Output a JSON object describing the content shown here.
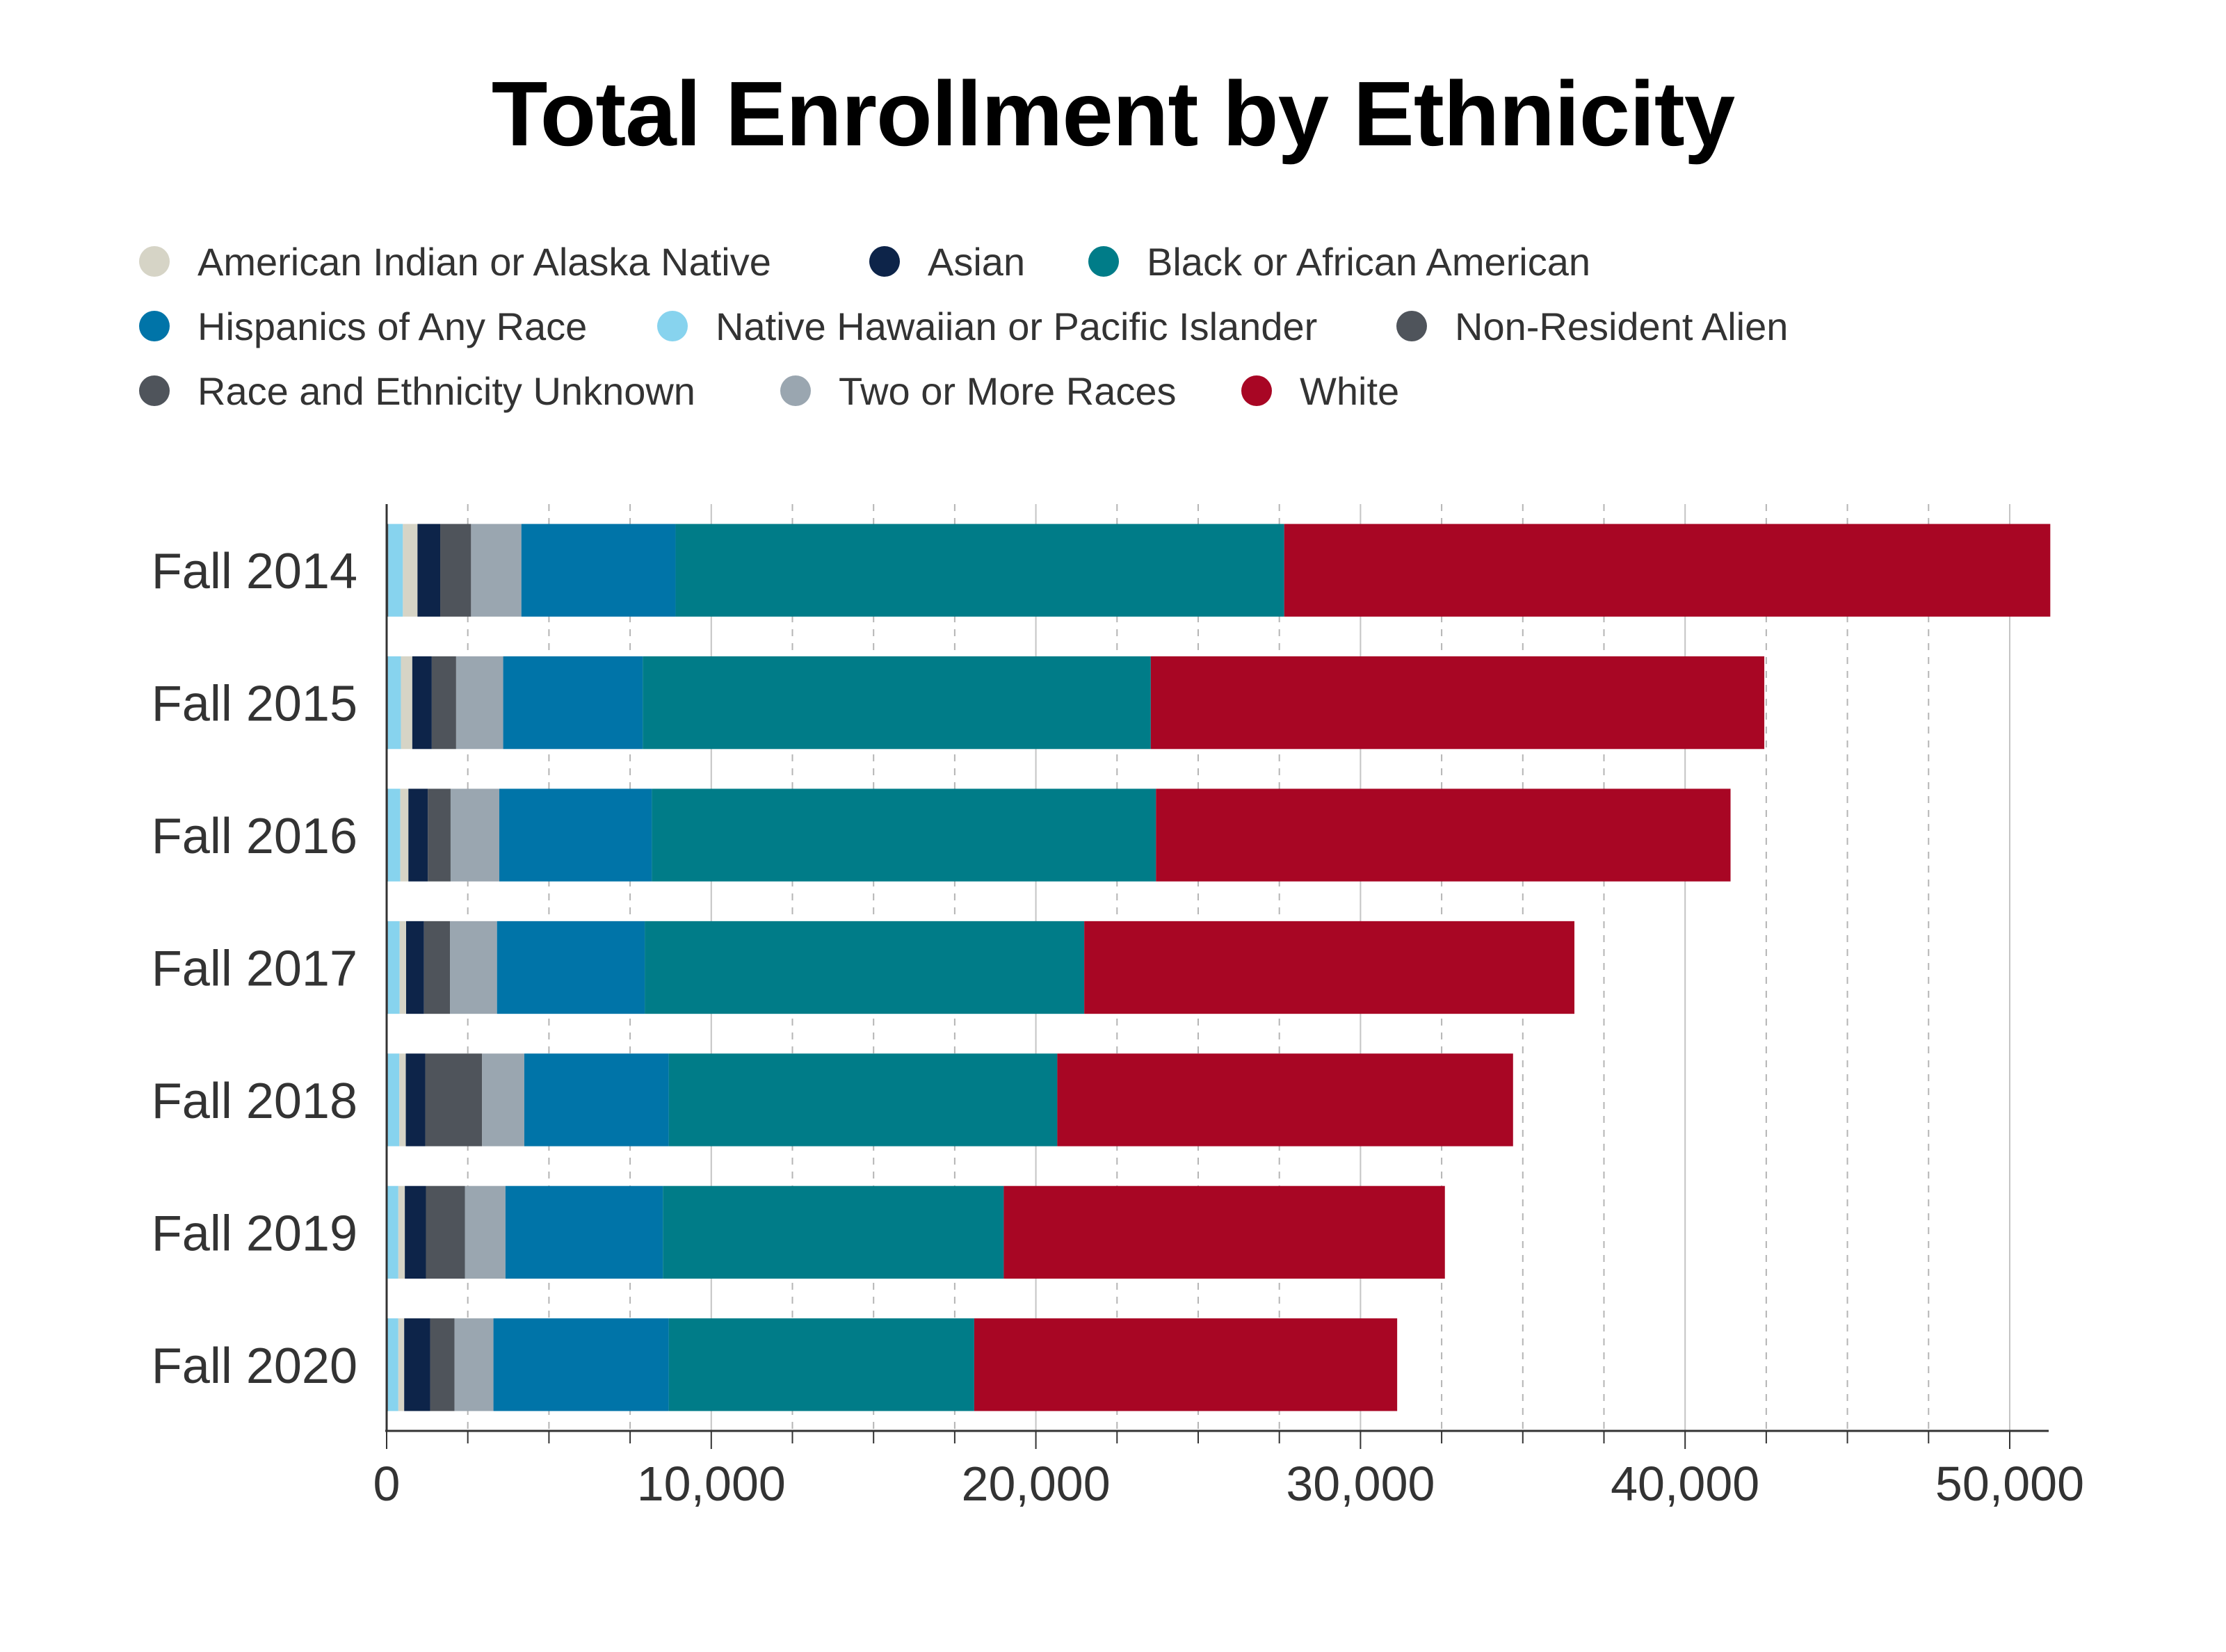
{
  "chart_data": {
    "type": "bar",
    "orientation": "horizontal",
    "stacked": true,
    "title": "Total Enrollment by Ethnicity",
    "xlabel": "",
    "ylabel": "",
    "xlim": [
      0,
      51200
    ],
    "x_ticks": [
      0,
      10000,
      20000,
      30000,
      40000,
      50000
    ],
    "x_tick_labels": [
      "0",
      "10,000",
      "20,000",
      "30,000",
      "40,000",
      "50,000"
    ],
    "grid": "vertical",
    "legend_position": "top",
    "categories": [
      "Fall 2014",
      "Fall 2015",
      "Fall 2016",
      "Fall 2017",
      "Fall 2018",
      "Fall 2019",
      "Fall 2020"
    ],
    "series": [
      {
        "name": "Non-Resident Alien",
        "color": "#4f545b",
        "values": [
          50,
          40,
          40,
          40,
          40,
          30,
          40
        ]
      },
      {
        "name": "Native Hawaiian or Pacific Islander",
        "color": "#87d3ee",
        "values": [
          450,
          400,
          380,
          360,
          350,
          330,
          320
        ]
      },
      {
        "name": "American Indian or Alaska Native",
        "color": "#d6d4c6",
        "values": [
          450,
          350,
          250,
          200,
          200,
          200,
          180
        ]
      },
      {
        "name": "Asian",
        "color": "#0d2449",
        "values": [
          700,
          600,
          600,
          550,
          600,
          650,
          800
        ]
      },
      {
        "name": "Race and Ethnicity Unknown",
        "color": "#4f545b",
        "values": [
          950,
          750,
          700,
          800,
          1750,
          1200,
          750
        ]
      },
      {
        "name": "Two or More Races",
        "color": "#9aa6b0",
        "values": [
          1550,
          1450,
          1500,
          1450,
          1300,
          1250,
          1200
        ]
      },
      {
        "name": "Hispanics of Any Race",
        "color": "#0074a8",
        "values": [
          4750,
          4300,
          4700,
          4550,
          4450,
          4850,
          5400
        ]
      },
      {
        "name": "Black or African American",
        "color": "#007c88",
        "values": [
          18750,
          15650,
          15530,
          13540,
          11970,
          10500,
          9410
        ]
      },
      {
        "name": "White",
        "color": "#a80624",
        "values": [
          23600,
          18900,
          17700,
          15100,
          14040,
          13590,
          13030
        ]
      }
    ]
  },
  "legend": {
    "items": [
      {
        "label": "American Indian or Alaska Native",
        "color": "#d6d4c6"
      },
      {
        "label": "Asian",
        "color": "#0d2449"
      },
      {
        "label": "Black or African American",
        "color": "#007c88"
      },
      {
        "label": "Hispanics of Any Race",
        "color": "#0074a8"
      },
      {
        "label": "Native Hawaiian or Pacific Islander",
        "color": "#87d3ee"
      },
      {
        "label": "Non-Resident Alien",
        "color": "#4f545b"
      },
      {
        "label": "Race and Ethnicity Unknown",
        "color": "#4f545b"
      },
      {
        "label": "Two or More Races",
        "color": "#9aa6b0"
      },
      {
        "label": "White",
        "color": "#a80624"
      }
    ]
  }
}
